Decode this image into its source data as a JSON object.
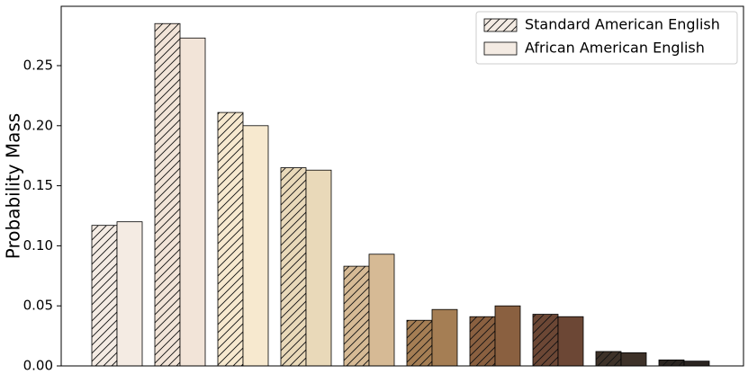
{
  "chart_data": {
    "type": "bar",
    "y_label": "Probability Mass",
    "categories": [
      null,
      null,
      null,
      null,
      null,
      null,
      null,
      null,
      null,
      null
    ],
    "colors": [
      "#f4ebe3",
      "#f2e4d8",
      "#f7e9cf",
      "#e9d9b9",
      "#d6ba95",
      "#a57e54",
      "#8a6040",
      "#6c4735",
      "#3e3229",
      "#2b2521"
    ],
    "series": [
      {
        "name": "Standard American English",
        "hatch": true,
        "values": [
          0.117,
          0.285,
          0.211,
          0.165,
          0.083,
          0.038,
          0.041,
          0.043,
          0.012,
          0.005
        ]
      },
      {
        "name": "African American English",
        "hatch": false,
        "values": [
          0.12,
          0.273,
          0.2,
          0.163,
          0.093,
          0.047,
          0.05,
          0.041,
          0.011,
          0.004
        ]
      }
    ],
    "ylim": [
      0,
      0.2994
    ],
    "yticks": [
      {
        "value": 0,
        "label": "0.00"
      },
      {
        "value": 0.05,
        "label": "0.05"
      },
      {
        "value": 0.1,
        "label": "0.10"
      },
      {
        "value": 0.15,
        "label": "0.15"
      },
      {
        "value": 0.2,
        "label": "0.20"
      },
      {
        "value": 0.25,
        "label": "0.25"
      }
    ],
    "legend": "upper right"
  }
}
